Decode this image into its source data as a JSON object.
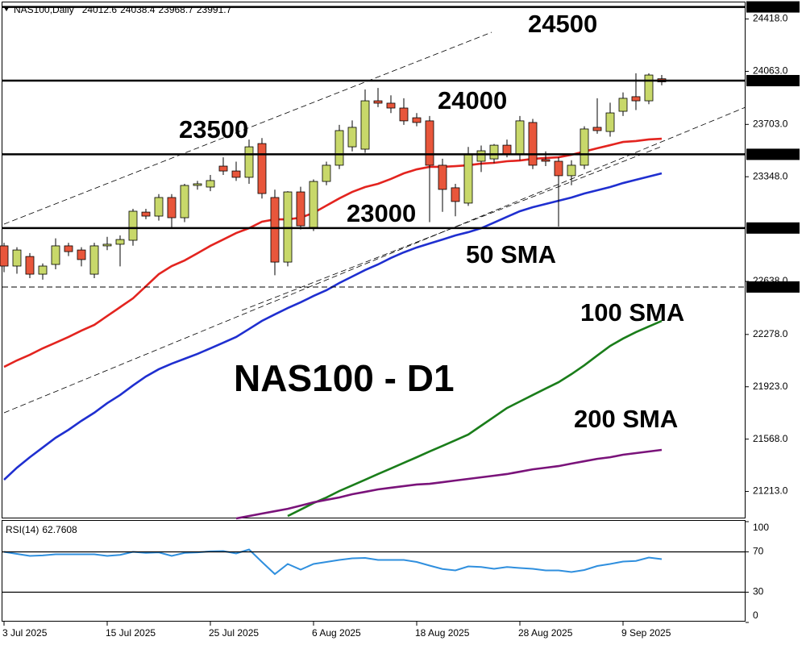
{
  "chart_data": [
    {
      "type": "candlestick",
      "title": "NAS100,Daily",
      "up_color": "#c8d86a",
      "down_color": "#e8563b",
      "categories": [
        "3 Jul 2025",
        null,
        null,
        null,
        null,
        null,
        null,
        null,
        "15 Jul 2025",
        null,
        null,
        null,
        null,
        null,
        null,
        null,
        "25 Jul 2025",
        null,
        null,
        null,
        null,
        null,
        null,
        null,
        "6 Aug 2025",
        null,
        null,
        null,
        null,
        null,
        null,
        null,
        "18 Aug 2025",
        null,
        null,
        null,
        null,
        null,
        null,
        null,
        "28 Aug 2025",
        null,
        null,
        null,
        null,
        null,
        null,
        null,
        "9 Sep 2025",
        null,
        null,
        null
      ],
      "open": [
        22879,
        22742,
        22807,
        22687,
        22753,
        22879,
        22851,
        22687,
        22879,
        22890,
        22917,
        23108,
        23081,
        23207,
        23070,
        23289,
        23278,
        23420,
        23387,
        23344,
        23573,
        23207,
        22769,
        23245,
        23004,
        23316,
        23426,
        23551,
        23535,
        23863,
        23847,
        23814,
        23748,
        23727,
        23426,
        23273,
        23169,
        23453,
        23469,
        23562,
        23497,
        23716,
        23464,
        23453,
        23355,
        23426,
        23683,
        23655,
        23792,
        23891,
        23863,
        24012.6
      ],
      "high": [
        22900,
        22870,
        22830,
        22760,
        22930,
        22900,
        22870,
        22900,
        22940,
        22950,
        23130,
        23130,
        23230,
        23230,
        23300,
        23320,
        23360,
        23480,
        23450,
        23600,
        23610,
        23260,
        23250,
        23280,
        23330,
        23450,
        23700,
        23730,
        23940,
        23950,
        23900,
        23880,
        23780,
        23760,
        23470,
        23300,
        23550,
        23560,
        23570,
        23600,
        23760,
        23740,
        23520,
        23480,
        23460,
        23690,
        23880,
        23850,
        23920,
        24050,
        24050,
        24038.4
      ],
      "low": [
        22700,
        22690,
        22660,
        22650,
        22720,
        22810,
        22740,
        22660,
        22850,
        22740,
        22880,
        23060,
        23050,
        23000,
        23040,
        23260,
        23250,
        23360,
        23320,
        23300,
        23200,
        22680,
        22740,
        22990,
        22980,
        23290,
        23400,
        23520,
        23510,
        23820,
        23780,
        23700,
        23690,
        23040,
        23110,
        23080,
        23150,
        23380,
        23440,
        23480,
        23460,
        23400,
        23420,
        23010,
        23290,
        23400,
        23640,
        23620,
        23760,
        23800,
        23840,
        23968.7
      ],
      "close": [
        22742,
        22851,
        22687,
        22742,
        22879,
        22840,
        22786,
        22879,
        22890,
        22922,
        23114,
        23081,
        23207,
        23070,
        23289,
        23300,
        23322,
        23387,
        23344,
        23551,
        23234,
        22769,
        23245,
        23015,
        23316,
        23426,
        23661,
        23683,
        23863,
        23847,
        23814,
        23727,
        23716,
        23426,
        23262,
        23180,
        23497,
        23524,
        23562,
        23497,
        23727,
        23426,
        23453,
        23355,
        23426,
        23672,
        23661,
        23781,
        23880,
        23863,
        24038,
        23991.7
      ],
      "series": [
        {
          "color": "#e3241f",
          "values": [
            22058,
            22102,
            22140,
            22184,
            22222,
            22261,
            22304,
            22343,
            22403,
            22463,
            22523,
            22605,
            22687,
            22742,
            22780,
            22829,
            22879,
            22922,
            22966,
            22999,
            23043,
            23059,
            23059,
            23070,
            23103,
            23152,
            23201,
            23245,
            23278,
            23300,
            23333,
            23371,
            23398,
            23415,
            23415,
            23420,
            23426,
            23437,
            23442,
            23453,
            23458,
            23469,
            23475,
            23480,
            23497,
            23519,
            23541,
            23562,
            23584,
            23590,
            23601,
            23606
          ]
        },
        {
          "name": "50 SMA",
          "color": "#1f2fd0",
          "values": [
            21292,
            21374,
            21445,
            21511,
            21577,
            21631,
            21692,
            21747,
            21812,
            21867,
            21932,
            21993,
            22042,
            22080,
            22113,
            22146,
            22184,
            22222,
            22261,
            22315,
            22370,
            22414,
            22457,
            22496,
            22539,
            22578,
            22627,
            22671,
            22715,
            22753,
            22797,
            22835,
            22868,
            22895,
            22922,
            22950,
            22972,
            22999,
            23037,
            23076,
            23114,
            23141,
            23163,
            23185,
            23207,
            23234,
            23256,
            23278,
            23305,
            23327,
            23349,
            23371
          ]
        },
        {
          "name": "100 SMA",
          "color": "#1a7d1a",
          "values": [
            null,
            null,
            null,
            null,
            null,
            null,
            null,
            null,
            null,
            null,
            null,
            null,
            null,
            null,
            null,
            null,
            null,
            null,
            null,
            null,
            null,
            null,
            21046,
            21090,
            21134,
            21172,
            21216,
            21254,
            21292,
            21331,
            21369,
            21407,
            21445,
            21484,
            21522,
            21560,
            21599,
            21659,
            21719,
            21779,
            21823,
            21867,
            21911,
            21954,
            22009,
            22069,
            22135,
            22200,
            22250,
            22294,
            22332,
            22370
          ]
        },
        {
          "name": "200 SMA",
          "color": "#7a137a",
          "values": [
            null,
            null,
            null,
            null,
            null,
            null,
            null,
            null,
            null,
            null,
            null,
            null,
            null,
            null,
            null,
            null,
            null,
            null,
            21030,
            21046,
            21063,
            21079,
            21095,
            21117,
            21139,
            21156,
            21172,
            21194,
            21210,
            21227,
            21238,
            21249,
            21260,
            21265,
            21276,
            21287,
            21298,
            21309,
            21320,
            21331,
            21347,
            21363,
            21374,
            21385,
            21402,
            21418,
            21434,
            21445,
            21462,
            21473,
            21484,
            21495
          ]
        }
      ],
      "ylim": [
        21030,
        24536
      ],
      "yticks": [
        {
          "value": 24418,
          "label": "24418.0"
        },
        {
          "value": 24063,
          "label": "24063.0"
        },
        {
          "value": 23703,
          "label": "23703.0"
        },
        {
          "value": 23348,
          "label": "23348.0"
        },
        {
          "value": 22638,
          "label": "22638.0"
        },
        {
          "value": 22278,
          "label": "22278.0"
        },
        {
          "value": 21923,
          "label": "21923.0"
        },
        {
          "value": 21568,
          "label": "21568.0"
        },
        {
          "value": 21213,
          "label": "21213.0"
        }
      ],
      "levels": [
        {
          "value": 24500,
          "label": "24500.0"
        },
        {
          "value": 24000,
          "label": "24000.0"
        },
        {
          "value": 23500,
          "label": "23500.0"
        },
        {
          "value": 23000,
          "label": "23000.0"
        },
        {
          "value": 22600,
          "label": "22600.0",
          "style": "dashed"
        }
      ],
      "annotations": [
        "24500",
        "24000",
        "23500",
        "23000",
        "NAS100 - D1"
      ]
    },
    {
      "type": "line",
      "title": "RSI(14)",
      "color": "#2f8fde",
      "values": [
        70,
        68,
        66,
        66.5,
        67.6,
        67.6,
        67.6,
        67.6,
        66,
        67,
        70,
        69,
        69.5,
        66,
        69,
        69.5,
        70.5,
        70.8,
        68.4,
        72.4,
        60,
        48,
        58,
        52.4,
        58,
        60,
        62,
        63.6,
        64,
        62,
        62,
        62,
        60,
        56.4,
        53,
        51.6,
        55.6,
        55,
        53.2,
        55,
        54,
        53.2,
        51.6,
        51.6,
        50,
        52,
        56,
        58,
        60.4,
        61,
        64.4,
        62.7608
      ],
      "ylim": [
        0,
        100
      ],
      "yticks": [
        100,
        70,
        30,
        0
      ],
      "levels": [
        70,
        30
      ]
    }
  ]
}
